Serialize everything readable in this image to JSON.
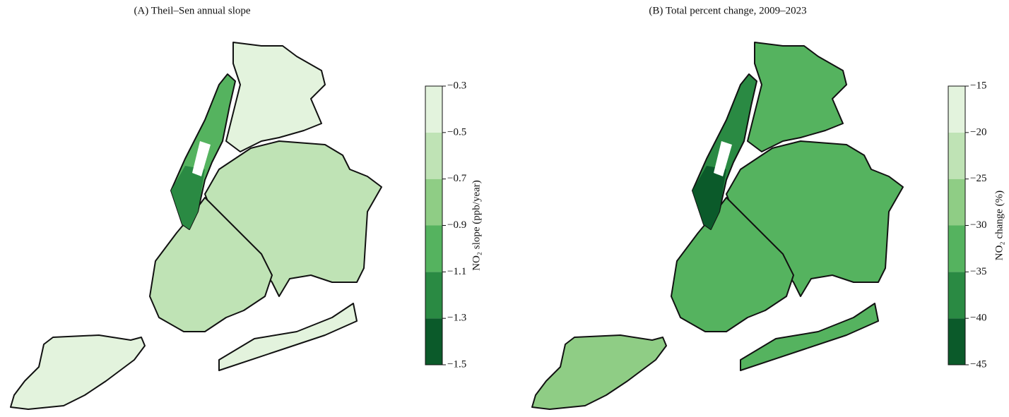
{
  "panels": [
    {
      "title": "(A) Theil–Sen annual slope",
      "colorbar": {
        "label": "NO₂ slope (ppb/year)",
        "lim": [
          -1.5,
          -0.3
        ],
        "ticks": [
          {
            "value": -0.3,
            "label": "−0.3"
          },
          {
            "value": -0.5,
            "label": "−0.5"
          },
          {
            "value": -0.7,
            "label": "−0.7"
          },
          {
            "value": -0.9,
            "label": "−0.9"
          },
          {
            "value": -1.1,
            "label": "−1.1"
          },
          {
            "value": -1.3,
            "label": "−1.3"
          },
          {
            "value": -1.5,
            "label": "−1.5"
          }
        ],
        "colors": [
          "#0b5a2a",
          "#2a8a43",
          "#55b35f",
          "#8fcd85",
          "#bfe3b5",
          "#e3f3dd"
        ]
      }
    },
    {
      "title": "(B) Total percent change, 2009–2023",
      "colorbar": {
        "label": "NO₂ change (%)",
        "lim": [
          -45,
          -15
        ],
        "ticks": [
          {
            "value": -15,
            "label": "−15"
          },
          {
            "value": -20,
            "label": "−20"
          },
          {
            "value": -25,
            "label": "−25"
          },
          {
            "value": -30,
            "label": "−30"
          },
          {
            "value": -35,
            "label": "−35"
          },
          {
            "value": -40,
            "label": "−40"
          },
          {
            "value": -45,
            "label": "−45"
          }
        ],
        "colors": [
          "#0b5a2a",
          "#2a8a43",
          "#55b35f",
          "#8fcd85",
          "#bfe3b5",
          "#e3f3dd"
        ]
      }
    }
  ]
}
